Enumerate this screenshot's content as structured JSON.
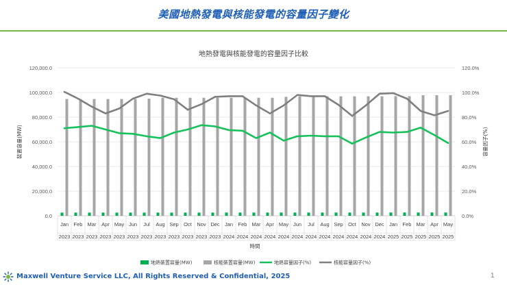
{
  "slide": {
    "title": "美國地熱發電與核能發電的容量因子變化",
    "footer": "Maxwell Venture Service LLC, All Rights Reserved & Confidential, 2025",
    "page_number": "1"
  },
  "colors": {
    "title": "#1f5fb6",
    "rule": "#7ab648",
    "geo": "#00b050",
    "nuc": "#a6a6a6",
    "geo_line": "#16c05a",
    "nuc_line": "#7f7f7f"
  },
  "chart_data": {
    "type": "bar",
    "title": "地熱發電與核能發電的容量因子比較",
    "xlabel": "時間",
    "ylabel": "裝置容量(MW)",
    "y2label": "容量因子(%)",
    "ylim": [
      0,
      120000
    ],
    "y2lim": [
      0,
      1.2
    ],
    "yticks": [
      "0.0",
      "20,000.0",
      "40,000.0",
      "60,000.0",
      "80,000.0",
      "100,000.0",
      "120,000.0"
    ],
    "y2ticks": [
      "0.0%",
      "20.0%",
      "40.0%",
      "60.0%",
      "80.0%",
      "100.0%",
      "120.0%"
    ],
    "categories": [
      [
        "Jan",
        "2023"
      ],
      [
        "Feb",
        "2023"
      ],
      [
        "Mar",
        "2023"
      ],
      [
        "Apr",
        "2023"
      ],
      [
        "May",
        "2023"
      ],
      [
        "Jun",
        "2023"
      ],
      [
        "Jul",
        "2023"
      ],
      [
        "Aug",
        "2023"
      ],
      [
        "Sep",
        "2023"
      ],
      [
        "Oct",
        "2023"
      ],
      [
        "Nov",
        "2023"
      ],
      [
        "Dec",
        "2023"
      ],
      [
        "Jan",
        "2024"
      ],
      [
        "Feb",
        "2024"
      ],
      [
        "Mar",
        "2024"
      ],
      [
        "Apr",
        "2024"
      ],
      [
        "May",
        "2024"
      ],
      [
        "Jun",
        "2024"
      ],
      [
        "Jul",
        "2024"
      ],
      [
        "Aug",
        "2024"
      ],
      [
        "Sep",
        "2024"
      ],
      [
        "Oct",
        "2024"
      ],
      [
        "Nov",
        "2024"
      ],
      [
        "Dec",
        "2024"
      ],
      [
        "Jan",
        "2025"
      ],
      [
        "Feb",
        "2025"
      ],
      [
        "Mar",
        "2025"
      ],
      [
        "Apr",
        "2025"
      ],
      [
        "May",
        "2025"
      ]
    ],
    "series": [
      {
        "name": "地熱裝置容量(MW)",
        "kind": "bar",
        "axis": "left",
        "values": [
          2600,
          2600,
          2600,
          2600,
          2600,
          2600,
          2600,
          2600,
          2600,
          2600,
          2600,
          2600,
          2650,
          2650,
          2650,
          2650,
          2650,
          2650,
          2650,
          2650,
          2650,
          2650,
          2650,
          2650,
          2700,
          2700,
          2700,
          2700,
          2700
        ]
      },
      {
        "name": "核能裝置容量(MW)",
        "kind": "bar",
        "axis": "left",
        "values": [
          94700,
          94700,
          94700,
          94700,
          94700,
          94700,
          95000,
          95700,
          95700,
          95700,
          95700,
          95700,
          95700,
          95700,
          95700,
          95700,
          96500,
          96900,
          96900,
          96900,
          96900,
          96900,
          96900,
          96900,
          97000,
          97000,
          97800,
          97800,
          97800
        ]
      },
      {
        "name": "地熱容量因子(%)",
        "kind": "line",
        "axis": "right",
        "values": [
          0.71,
          0.72,
          0.73,
          0.7,
          0.67,
          0.665,
          0.645,
          0.63,
          0.675,
          0.7,
          0.735,
          0.725,
          0.695,
          0.69,
          0.63,
          0.675,
          0.61,
          0.645,
          0.65,
          0.645,
          0.645,
          0.585,
          0.635,
          0.68,
          0.675,
          0.68,
          0.715,
          0.655,
          0.59
        ]
      },
      {
        "name": "核能容量因子(%)",
        "kind": "line",
        "axis": "right",
        "values": [
          1.005,
          0.95,
          0.885,
          0.83,
          0.87,
          0.95,
          0.99,
          0.975,
          0.945,
          0.86,
          0.905,
          0.965,
          0.97,
          0.97,
          0.895,
          0.83,
          0.895,
          0.98,
          0.97,
          0.97,
          0.9,
          0.81,
          0.895,
          0.99,
          0.995,
          0.95,
          0.85,
          0.815,
          0.85
        ]
      }
    ],
    "legend_position": "bottom",
    "grid": true
  }
}
